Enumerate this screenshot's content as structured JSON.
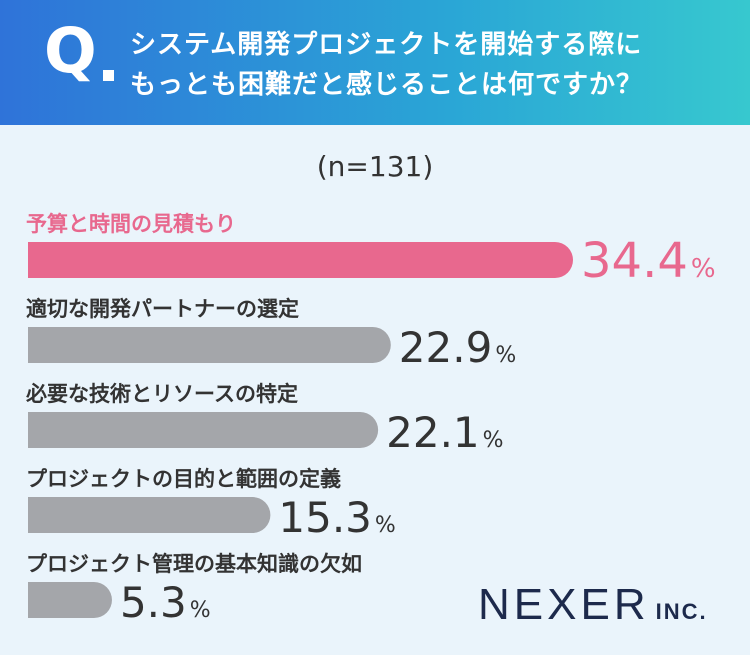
{
  "question": {
    "mark": "Q",
    "line1": "システム開発プロジェクトを開始する際に",
    "line2": "もっとも困難だと感じることは何ですか？"
  },
  "sample_size": "(n=131)",
  "logo": {
    "main": "NEXER",
    "sub": "INC."
  },
  "colors": {
    "highlight": "#e8688e",
    "bar": "#a4a6aa",
    "value_text": "#333333"
  },
  "chart_data": {
    "type": "bar",
    "orientation": "horizontal",
    "unit": "%",
    "categories": [
      "予算と時間の見積もり",
      "適切な開発パートナーの選定",
      "必要な技術とリソースの特定",
      "プロジェクトの目的と範囲の定義",
      "プロジェクト管理の基本知識の欠如"
    ],
    "values": [
      34.4,
      22.9,
      22.1,
      15.3,
      5.3
    ],
    "value_labels": [
      "34.4",
      "22.9",
      "22.1",
      "15.3",
      "5.3"
    ],
    "highlight_index": 0,
    "xlim": [
      0,
      35
    ],
    "title": "システム開発プロジェクトを開始する際にもっとも困難だと感じることは何ですか？",
    "xlabel": "",
    "ylabel": ""
  }
}
